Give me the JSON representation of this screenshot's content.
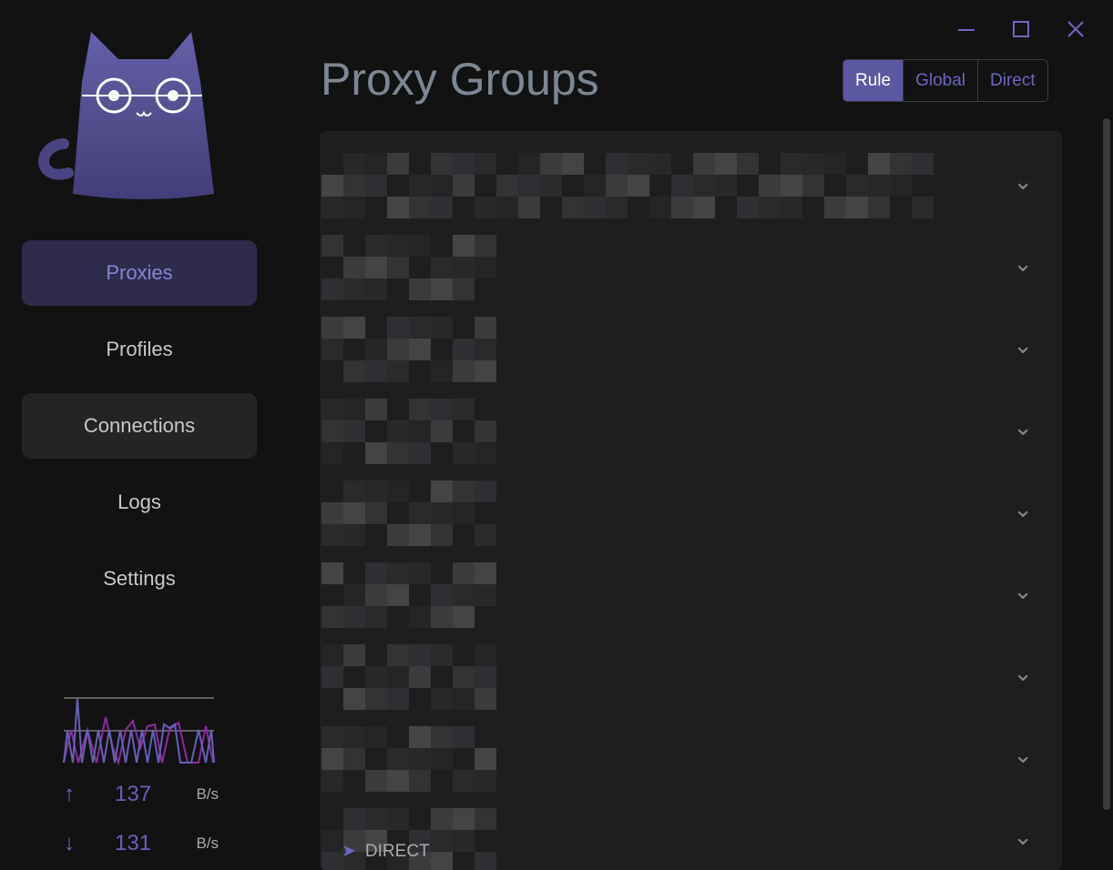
{
  "window": {
    "controls": [
      "minimize-icon",
      "maximize-icon",
      "close-icon"
    ]
  },
  "sidebar": {
    "items": [
      {
        "label": "Proxies",
        "active": true
      },
      {
        "label": "Profiles"
      },
      {
        "label": "Connections"
      },
      {
        "label": "Logs"
      },
      {
        "label": "Settings"
      }
    ],
    "traffic": {
      "upload": "137",
      "upload_unit": "B/s",
      "download": "131",
      "download_unit": "B/s"
    }
  },
  "main": {
    "title": "Proxy Groups",
    "modes": [
      "Rule",
      "Global",
      "Direct"
    ],
    "selected_mode": "Rule",
    "group_count_visible": 9,
    "last_row_proxy": "DIRECT"
  },
  "colors": {
    "accent": "#5b57a0",
    "accent_text": "#6d67bf",
    "panel": "#1e1e1e",
    "background": "#121212"
  }
}
